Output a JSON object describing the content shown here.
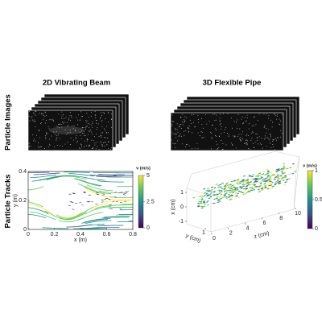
{
  "columns": [
    {
      "title": "2D Vibrating Beam"
    },
    {
      "title": "3D Flexible Pipe"
    }
  ],
  "rows": [
    "Particle Images",
    "Particle Tracks"
  ],
  "beam_plot": {
    "xlabel": "x (m)",
    "ylabel": "y (m)",
    "xlim": [
      0,
      0.8
    ],
    "xticks": [
      0,
      0.2,
      0.4,
      0.6,
      0.8
    ],
    "ylim": [
      0,
      0.4
    ],
    "yticks": [
      0,
      0.2,
      0.4
    ],
    "colorbar": {
      "label": "v (m/s)",
      "lim": [
        0,
        5
      ],
      "ticks": [
        0,
        2.5,
        5
      ]
    }
  },
  "pipe_plot": {
    "xlabel": "x (cm)",
    "ylabel": "y (cm)",
    "zlabel": "z (cm)",
    "xlim": [
      -1,
      1
    ],
    "xticks": [
      -1,
      0,
      1
    ],
    "ylim": [
      0,
      1
    ],
    "yticks": [
      1
    ],
    "zlim": [
      0,
      10
    ],
    "zticks": [
      0,
      2,
      4,
      6,
      8,
      10
    ],
    "colorbar": {
      "label": "v (m/s)",
      "lim": [
        0,
        1
      ],
      "ticks": [
        0,
        0.5,
        1
      ]
    }
  }
}
